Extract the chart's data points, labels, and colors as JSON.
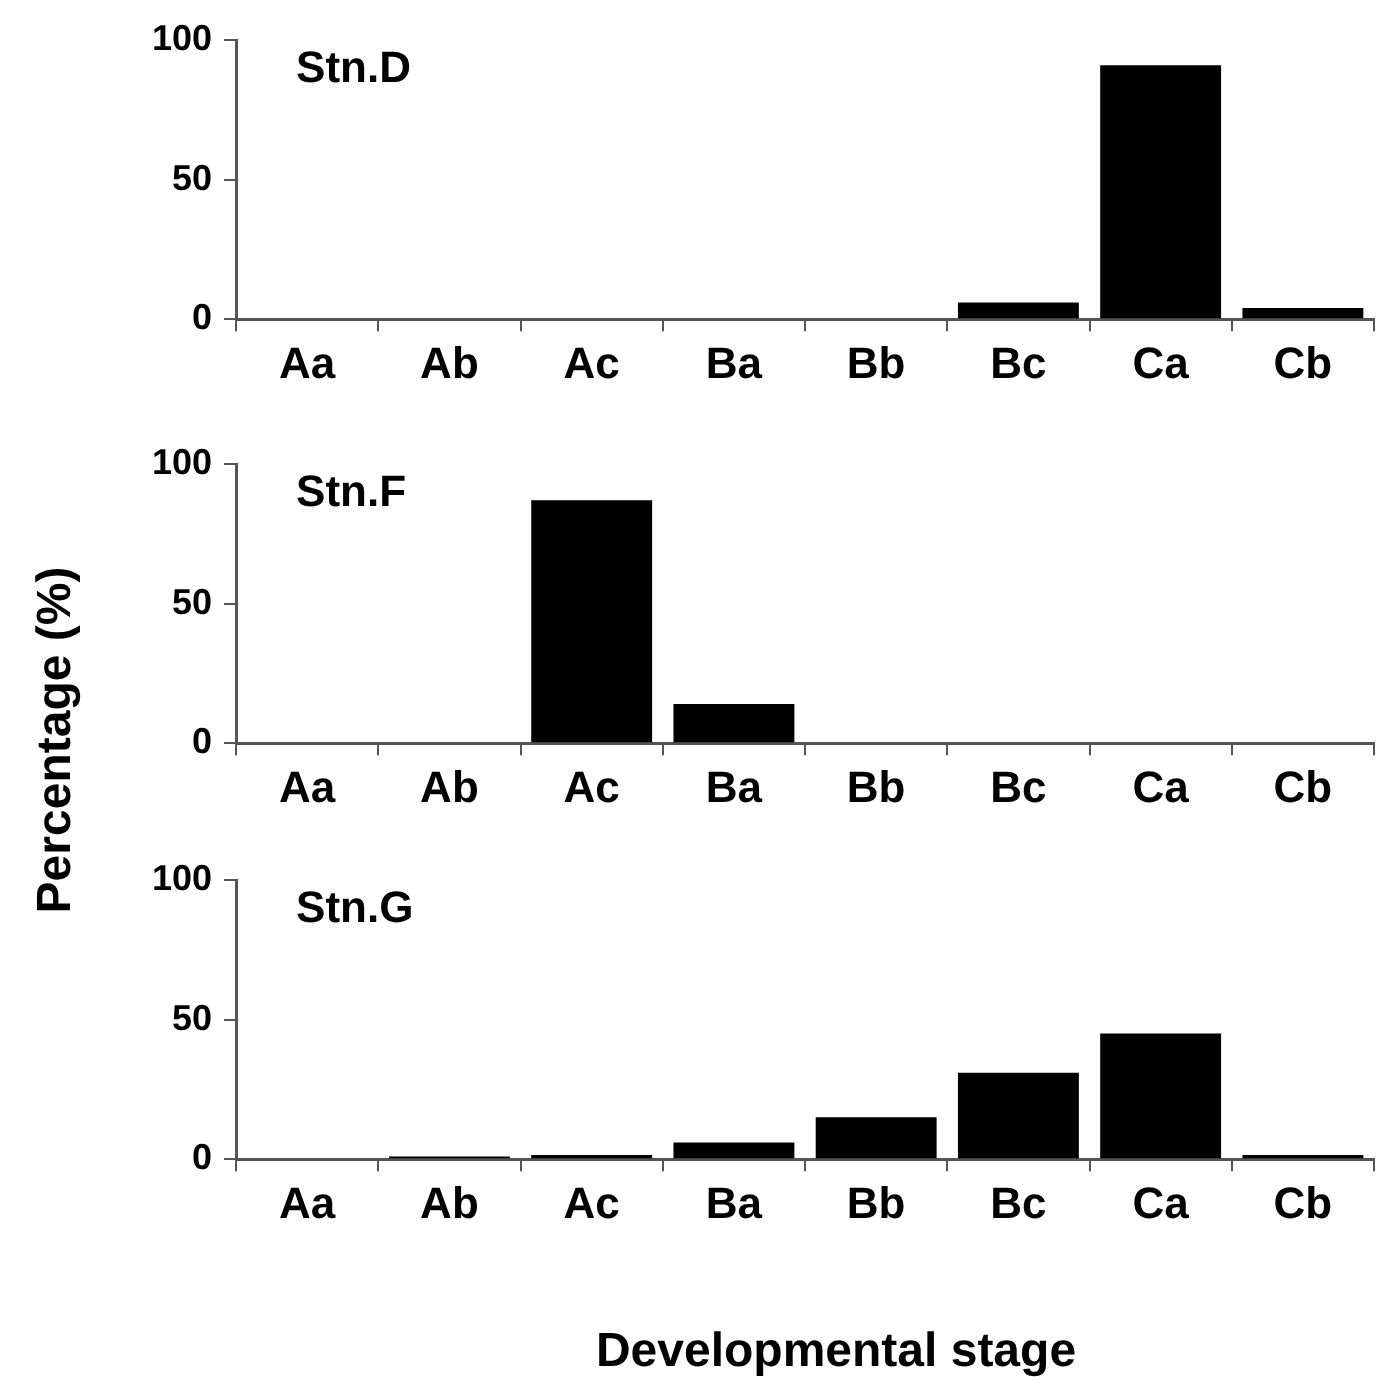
{
  "chart_data": [
    {
      "type": "bar",
      "title": "Stn.D",
      "categories": [
        "Aa",
        "Ab",
        "Ac",
        "Ba",
        "Bb",
        "Bc",
        "Ca",
        "Cb"
      ],
      "values": [
        0,
        0,
        0,
        0,
        0,
        6,
        91,
        4
      ],
      "color": "#000000",
      "ylim": [
        0,
        100
      ],
      "yticks": [
        0,
        50,
        100
      ],
      "grid": false
    },
    {
      "type": "bar",
      "title": "Stn.F",
      "ylabel": "Percentage (%)",
      "categories": [
        "Aa",
        "Ab",
        "Ac",
        "Ba",
        "Bb",
        "Bc",
        "Ca",
        "Cb"
      ],
      "values": [
        0,
        0,
        87,
        14,
        0,
        0,
        0,
        0
      ],
      "color": "#000000",
      "ylim": [
        0,
        100
      ],
      "yticks": [
        0,
        50,
        100
      ],
      "grid": false
    },
    {
      "type": "bar",
      "title": "Stn.G",
      "xlabel": "Developmental stage",
      "categories": [
        "Aa",
        "Ab",
        "Ac",
        "Ba",
        "Bb",
        "Bc",
        "Ca",
        "Cb"
      ],
      "values": [
        0,
        1,
        1.5,
        6,
        15,
        31,
        45,
        1.5
      ],
      "color": "#000000",
      "ylim": [
        0,
        100
      ],
      "yticks": [
        0,
        50,
        100
      ],
      "grid": false
    }
  ]
}
